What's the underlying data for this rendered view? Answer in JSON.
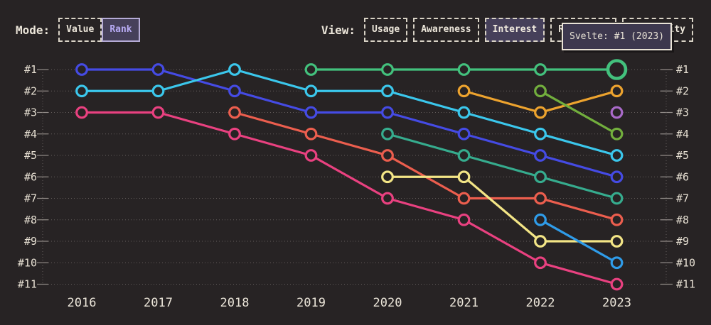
{
  "app": {
    "background": "#272324",
    "text_color": "#ebe5d9",
    "accent_purple": "#b7aaf3"
  },
  "controls": {
    "mode": {
      "label": "Mode:",
      "options": [
        {
          "label": "Value",
          "selected": false
        },
        {
          "label": "Rank",
          "selected": true
        }
      ]
    },
    "view": {
      "label": "View:",
      "options": [
        {
          "label": "Usage",
          "selected": false
        },
        {
          "label": "Awareness",
          "selected": false
        },
        {
          "label": "Interest",
          "selected": true
        },
        {
          "label": "Retention",
          "selected": false
        },
        {
          "label": "Positivity",
          "selected": false
        }
      ]
    }
  },
  "tooltip": {
    "text": "Svelte: #1 (2023)"
  },
  "chart_data": {
    "type": "line",
    "subtype": "bump-rank-chart",
    "x": [
      2016,
      2017,
      2018,
      2019,
      2020,
      2021,
      2022,
      2023
    ],
    "x_tick_labels": [
      "2016",
      "2017",
      "2018",
      "2019",
      "2020",
      "2021",
      "2022",
      "2023"
    ],
    "y_axis_labels": [
      "#1",
      "#2",
      "#3",
      "#4",
      "#5",
      "#6",
      "#7",
      "#8",
      "#9",
      "#10",
      "#11"
    ],
    "y_axis_mirrored_right": true,
    "ylim": [
      1,
      11
    ],
    "grid": "dotted-horizontal",
    "legend": "none",
    "series": [
      {
        "id": "indigo",
        "color": "#454be4",
        "points": [
          [
            2016,
            1
          ],
          [
            2017,
            1
          ],
          [
            2018,
            2
          ],
          [
            2019,
            3
          ],
          [
            2020,
            3
          ],
          [
            2021,
            4
          ],
          [
            2022,
            5
          ],
          [
            2023,
            6
          ]
        ]
      },
      {
        "id": "cyan",
        "color": "#3bc7ec",
        "points": [
          [
            2016,
            2
          ],
          [
            2017,
            2
          ],
          [
            2018,
            1
          ],
          [
            2019,
            2
          ],
          [
            2020,
            2
          ],
          [
            2021,
            3
          ],
          [
            2022,
            4
          ],
          [
            2023,
            5
          ]
        ]
      },
      {
        "id": "pink",
        "color": "#e94180",
        "points": [
          [
            2016,
            3
          ],
          [
            2017,
            3
          ],
          [
            2018,
            4
          ],
          [
            2019,
            5
          ],
          [
            2020,
            7
          ],
          [
            2021,
            8
          ],
          [
            2022,
            10
          ],
          [
            2023,
            11
          ]
        ]
      },
      {
        "id": "red",
        "color": "#ec5e4e",
        "points": [
          [
            2018,
            3
          ],
          [
            2019,
            4
          ],
          [
            2020,
            5
          ],
          [
            2021,
            7
          ],
          [
            2022,
            7
          ],
          [
            2023,
            8
          ]
        ]
      },
      {
        "id": "svelte-green",
        "label": "Svelte",
        "color": "#43c17d",
        "points": [
          [
            2019,
            1
          ],
          [
            2020,
            1
          ],
          [
            2021,
            1
          ],
          [
            2022,
            1
          ],
          [
            2023,
            1
          ]
        ]
      },
      {
        "id": "teal",
        "color": "#36ac8e",
        "points": [
          [
            2020,
            4
          ],
          [
            2021,
            5
          ],
          [
            2022,
            6
          ],
          [
            2023,
            7
          ]
        ]
      },
      {
        "id": "yellow",
        "color": "#f3e586",
        "points": [
          [
            2020,
            6
          ],
          [
            2021,
            6
          ],
          [
            2022,
            9
          ],
          [
            2023,
            9
          ]
        ]
      },
      {
        "id": "amber",
        "color": "#eda32e",
        "points": [
          [
            2021,
            2
          ],
          [
            2022,
            3
          ],
          [
            2023,
            2
          ]
        ]
      },
      {
        "id": "apple-green",
        "color": "#72ae3d",
        "points": [
          [
            2022,
            2
          ],
          [
            2023,
            4
          ]
        ]
      },
      {
        "id": "sky-blue",
        "color": "#2f9ce9",
        "points": [
          [
            2022,
            8
          ],
          [
            2023,
            10
          ]
        ]
      },
      {
        "id": "purple",
        "color": "#a96ac9",
        "points": [
          [
            2023,
            3
          ]
        ]
      }
    ],
    "highlight": {
      "series": "svelte-green",
      "year": 2023,
      "rank": 1
    }
  }
}
